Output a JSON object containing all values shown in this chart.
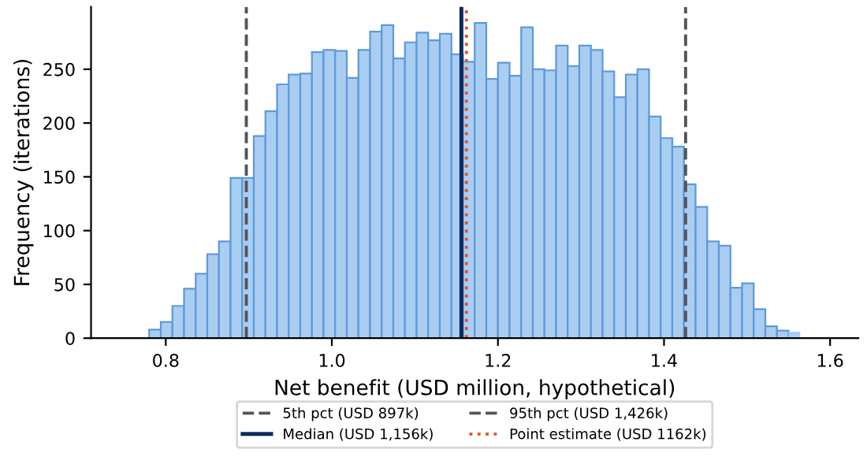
{
  "chart_data": {
    "type": "histogram",
    "xlabel": "Net benefit (USD million, hypothetical)",
    "ylabel": "Frequency (iterations)",
    "bins": [
      0.752,
      0.766,
      0.78,
      0.794,
      0.808,
      0.822,
      0.836,
      0.85,
      0.864,
      0.878,
      0.892,
      0.906,
      0.92,
      0.934,
      0.948,
      0.962,
      0.976,
      0.99,
      1.004,
      1.018,
      1.032,
      1.046,
      1.06,
      1.074,
      1.088,
      1.102,
      1.116,
      1.13,
      1.144,
      1.158,
      1.172,
      1.186,
      1.2,
      1.214,
      1.228,
      1.242,
      1.256,
      1.27,
      1.284,
      1.298,
      1.312,
      1.326,
      1.34,
      1.354,
      1.368,
      1.382,
      1.396,
      1.41,
      1.424,
      1.438,
      1.452,
      1.466,
      1.48,
      1.494,
      1.508,
      1.522,
      1.536,
      1.55,
      1.564,
      1.578,
      1.592
    ],
    "values": [
      null,
      0,
      8,
      15,
      30,
      46,
      60,
      78,
      90,
      149,
      149,
      188,
      211,
      236,
      245,
      246,
      266,
      268,
      267,
      242,
      268,
      285,
      291,
      260,
      275,
      284,
      277,
      283,
      264,
      257,
      293,
      241,
      256,
      244,
      289,
      250,
      249,
      272,
      253,
      272,
      268,
      248,
      224,
      245,
      250,
      206,
      186,
      178,
      143,
      122,
      90,
      86,
      47,
      51,
      27,
      11,
      7,
      6,
      0,
      null
    ],
    "color": "#aacdf2",
    "xlim": [
      0.71,
      1.634
    ],
    "ylim": [
      0,
      308
    ],
    "xticks": [
      {
        "value": 0.8,
        "label": "0.8"
      },
      {
        "value": 1.0,
        "label": "1.0"
      },
      {
        "value": 1.2,
        "label": "1.2"
      },
      {
        "value": 1.4,
        "label": "1.4"
      },
      {
        "value": 1.6,
        "label": "1.6"
      }
    ],
    "yticks": [
      0,
      50,
      100,
      150,
      200,
      250
    ],
    "ref_lines": [
      {
        "axis": "x",
        "value": 0.897,
        "label": "5th pct (USD 897k)",
        "color": "#555555",
        "line_style": "dashed"
      },
      {
        "axis": "x",
        "value": 1.156,
        "label": "Median (USD 1,156k)",
        "color": "#0d2a5c",
        "line_style": "solid"
      },
      {
        "axis": "x",
        "value": 1.426,
        "label": "95th pct (USD 1,426k)",
        "color": "#555555",
        "line_style": "dashed"
      },
      {
        "axis": "x",
        "value": 1.162,
        "label": "Point estimate (USD 1162k)",
        "color": "#e0562a",
        "line_style": "dotted"
      }
    ],
    "legend": "bottom",
    "grid": false
  }
}
